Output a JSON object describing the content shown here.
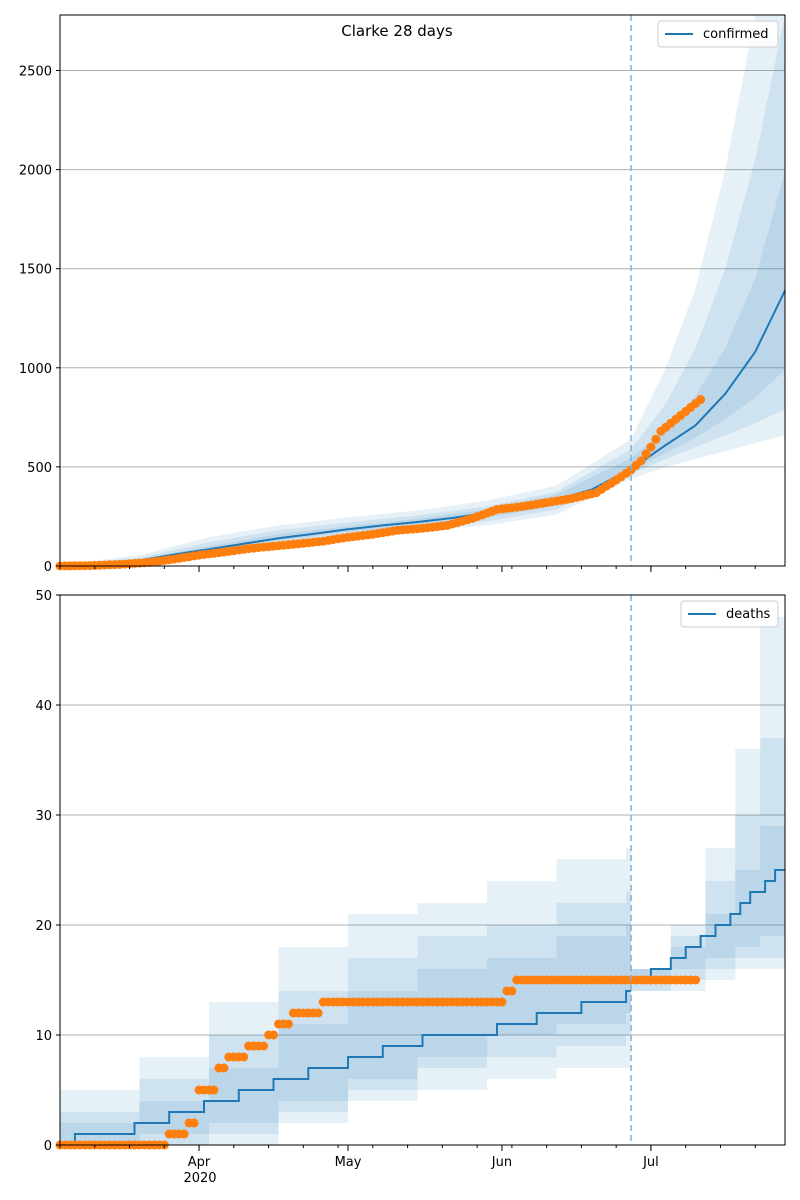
{
  "figure": {
    "title": "Clarke 28 days"
  },
  "colors": {
    "model": "#1f77b4",
    "observed": "#ff7f0e",
    "band": "#1f77b4",
    "grid": "#b0b0b0",
    "forecast_line": "#7fb0d8"
  },
  "x_axis": {
    "ticks": [
      {
        "date": "2020-04-01",
        "label": "Apr"
      },
      {
        "date": "2020-05-01",
        "label": "May"
      },
      {
        "date": "2020-06-01",
        "label": "Jun"
      },
      {
        "date": "2020-07-01",
        "label": "Jul"
      }
    ],
    "year_label": "2020"
  },
  "chart_data": [
    {
      "type": "line",
      "panel": "confirmed",
      "title": "Clarke 28 days",
      "legend": "confirmed",
      "legend_position": "top-right",
      "grid": "horizontal",
      "xlim": [
        "2020-03-04",
        "2020-07-28"
      ],
      "ylim": [
        0,
        2780
      ],
      "yticks": [
        0,
        500,
        1000,
        1500,
        2000,
        2500
      ],
      "forecast_start": "2020-06-27",
      "model_median": {
        "dates": [
          "2020-03-04",
          "2020-03-13",
          "2020-03-20",
          "2020-03-27",
          "2020-04-03",
          "2020-04-10",
          "2020-04-17",
          "2020-04-24",
          "2020-05-01",
          "2020-05-08",
          "2020-05-15",
          "2020-05-22",
          "2020-05-29",
          "2020-06-05",
          "2020-06-12",
          "2020-06-19",
          "2020-06-27",
          "2020-07-04",
          "2020-07-10",
          "2020-07-16",
          "2020-07-22",
          "2020-07-28"
        ],
        "values": [
          2,
          8,
          28,
          58,
          85,
          112,
          140,
          162,
          185,
          205,
          222,
          242,
          268,
          300,
          335,
          385,
          490,
          610,
          710,
          870,
          1080,
          1390
        ]
      },
      "bands": [
        {
          "dates": [
            "2020-03-04",
            "2020-03-20",
            "2020-04-03",
            "2020-04-17",
            "2020-05-01",
            "2020-05-15",
            "2020-05-29",
            "2020-06-12",
            "2020-06-27",
            "2020-07-04",
            "2020-07-10",
            "2020-07-16",
            "2020-07-22",
            "2020-07-28"
          ],
          "low": [
            0,
            10,
            50,
            110,
            150,
            175,
            205,
            260,
            440,
            500,
            540,
            580,
            620,
            660
          ],
          "high": [
            5,
            55,
            145,
            205,
            245,
            280,
            330,
            405,
            640,
            1000,
            1400,
            2000,
            2780,
            2780
          ]
        },
        {
          "dates": [
            "2020-03-04",
            "2020-03-20",
            "2020-04-03",
            "2020-04-17",
            "2020-05-01",
            "2020-05-15",
            "2020-05-29",
            "2020-06-12",
            "2020-06-27",
            "2020-07-04",
            "2020-07-10",
            "2020-07-16",
            "2020-07-22",
            "2020-07-28"
          ],
          "low": [
            1,
            16,
            62,
            120,
            160,
            190,
            225,
            285,
            465,
            540,
            600,
            660,
            720,
            790
          ],
          "high": [
            4,
            42,
            120,
            180,
            220,
            255,
            300,
            375,
            590,
            820,
            1100,
            1500,
            2050,
            2780
          ]
        },
        {
          "dates": [
            "2020-03-04",
            "2020-03-20",
            "2020-04-03",
            "2020-04-17",
            "2020-05-01",
            "2020-05-15",
            "2020-05-29",
            "2020-06-12",
            "2020-06-27",
            "2020-07-04",
            "2020-07-10",
            "2020-07-16",
            "2020-07-22",
            "2020-07-28"
          ],
          "low": [
            1,
            22,
            72,
            128,
            172,
            205,
            245,
            305,
            480,
            570,
            650,
            740,
            850,
            990
          ],
          "high": [
            3,
            35,
            100,
            160,
            200,
            238,
            285,
            360,
            545,
            690,
            860,
            1100,
            1450,
            1990
          ]
        }
      ],
      "observed": {
        "dates": [
          "2020-03-04",
          "2020-03-10",
          "2020-03-16",
          "2020-03-22",
          "2020-03-27",
          "2020-04-01",
          "2020-04-06",
          "2020-04-11",
          "2020-04-16",
          "2020-04-21",
          "2020-04-26",
          "2020-05-01",
          "2020-05-06",
          "2020-05-11",
          "2020-05-16",
          "2020-05-21",
          "2020-05-26",
          "2020-05-31",
          "2020-06-05",
          "2020-06-10",
          "2020-06-15",
          "2020-06-20",
          "2020-06-25",
          "2020-06-27",
          "2020-06-29",
          "2020-07-01",
          "2020-07-03",
          "2020-07-05",
          "2020-07-07",
          "2020-07-09",
          "2020-07-11"
        ],
        "values": [
          0,
          2,
          8,
          18,
          35,
          55,
          70,
          88,
          100,
          112,
          125,
          145,
          160,
          180,
          190,
          205,
          240,
          285,
          300,
          320,
          340,
          370,
          450,
          485,
          530,
          600,
          680,
          720,
          760,
          800,
          840
        ]
      }
    },
    {
      "type": "line",
      "panel": "deaths",
      "legend": "deaths",
      "legend_position": "top-right",
      "grid": "horizontal",
      "xlim": [
        "2020-03-04",
        "2020-07-28"
      ],
      "ylim": [
        0,
        50
      ],
      "yticks": [
        0,
        10,
        20,
        30,
        40,
        50
      ],
      "forecast_start": "2020-06-27",
      "model_median_step": {
        "dates": [
          "2020-03-04",
          "2020-03-07",
          "2020-03-19",
          "2020-03-26",
          "2020-04-02",
          "2020-04-09",
          "2020-04-16",
          "2020-04-23",
          "2020-05-01",
          "2020-05-08",
          "2020-05-16",
          "2020-05-31",
          "2020-06-08",
          "2020-06-17",
          "2020-06-26",
          "2020-06-27",
          "2020-07-01",
          "2020-07-05",
          "2020-07-08",
          "2020-07-11",
          "2020-07-14",
          "2020-07-17",
          "2020-07-19",
          "2020-07-21",
          "2020-07-24",
          "2020-07-26",
          "2020-07-28"
        ],
        "values": [
          0,
          1,
          2,
          3,
          4,
          5,
          6,
          7,
          8,
          9,
          10,
          11,
          12,
          13,
          14,
          15,
          16,
          17,
          18,
          19,
          20,
          21,
          22,
          23,
          24,
          25,
          25
        ]
      },
      "bands": [
        {
          "dates": [
            "2020-03-04",
            "2020-03-20",
            "2020-04-03",
            "2020-04-17",
            "2020-05-01",
            "2020-05-15",
            "2020-05-29",
            "2020-06-12",
            "2020-06-26",
            "2020-06-27",
            "2020-07-05",
            "2020-07-12",
            "2020-07-18",
            "2020-07-23",
            "2020-07-28"
          ],
          "low": [
            0,
            0,
            0,
            2,
            4,
            5,
            6,
            7,
            7,
            14,
            14,
            15,
            16,
            16,
            16
          ],
          "high": [
            5,
            8,
            13,
            18,
            21,
            22,
            24,
            26,
            27,
            16,
            20,
            27,
            36,
            48,
            50
          ]
        },
        {
          "dates": [
            "2020-03-04",
            "2020-03-20",
            "2020-04-03",
            "2020-04-17",
            "2020-05-01",
            "2020-05-15",
            "2020-05-29",
            "2020-06-12",
            "2020-06-26",
            "2020-06-27",
            "2020-07-05",
            "2020-07-12",
            "2020-07-18",
            "2020-07-23",
            "2020-07-28"
          ],
          "low": [
            0,
            0,
            1,
            3,
            5,
            7,
            8,
            9,
            10,
            14,
            15,
            16,
            17,
            17,
            18
          ],
          "high": [
            3,
            6,
            10,
            14,
            17,
            19,
            20,
            22,
            23,
            16,
            19,
            24,
            30,
            37,
            44
          ]
        },
        {
          "dates": [
            "2020-03-04",
            "2020-03-20",
            "2020-04-03",
            "2020-04-17",
            "2020-05-01",
            "2020-05-15",
            "2020-05-29",
            "2020-06-12",
            "2020-06-26",
            "2020-06-27",
            "2020-07-05",
            "2020-07-12",
            "2020-07-18",
            "2020-07-23",
            "2020-07-28"
          ],
          "low": [
            0,
            1,
            2,
            4,
            6,
            8,
            10,
            11,
            12,
            15,
            16,
            17,
            18,
            19,
            21
          ],
          "high": [
            2,
            4,
            7,
            11,
            14,
            16,
            17,
            19,
            20,
            16,
            18,
            21,
            25,
            29,
            32
          ]
        }
      ],
      "observed": {
        "dates": [
          "2020-03-04",
          "2020-03-06",
          "2020-03-08",
          "2020-03-10",
          "2020-03-12",
          "2020-03-14",
          "2020-03-16",
          "2020-03-18",
          "2020-03-20",
          "2020-03-22",
          "2020-03-24",
          "2020-03-26",
          "2020-03-28",
          "2020-03-30",
          "2020-04-01",
          "2020-04-03",
          "2020-04-05",
          "2020-04-07",
          "2020-04-09",
          "2020-04-11",
          "2020-04-13",
          "2020-04-15",
          "2020-04-17",
          "2020-04-20",
          "2020-04-23",
          "2020-04-26",
          "2020-05-01",
          "2020-05-06",
          "2020-05-11",
          "2020-05-16",
          "2020-05-21",
          "2020-05-26",
          "2020-05-31",
          "2020-06-02",
          "2020-06-04",
          "2020-06-08",
          "2020-06-12",
          "2020-06-16",
          "2020-06-20",
          "2020-06-24",
          "2020-06-28",
          "2020-07-02",
          "2020-07-06",
          "2020-07-10"
        ],
        "values": [
          0,
          0,
          0,
          0,
          0,
          0,
          0,
          0,
          0,
          0,
          0,
          1,
          1,
          2,
          5,
          5,
          7,
          8,
          8,
          9,
          9,
          10,
          11,
          12,
          12,
          13,
          13,
          13,
          13,
          13,
          13,
          13,
          13,
          14,
          15,
          15,
          15,
          15,
          15,
          15,
          15,
          15,
          15,
          15
        ]
      }
    }
  ]
}
